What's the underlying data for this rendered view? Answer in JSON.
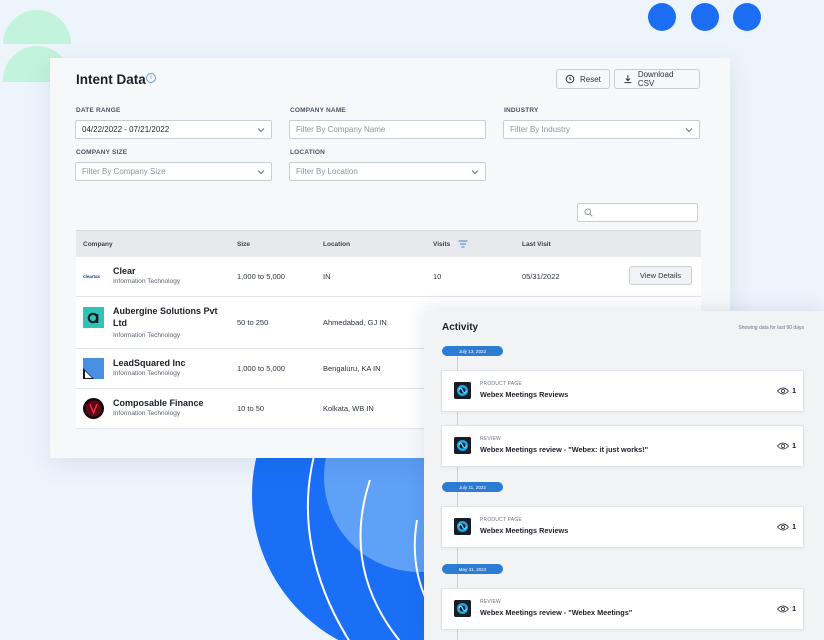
{
  "colors": {
    "accent": "#1c6ef5",
    "pill": "#2d7cd4",
    "mint": "#c3f3dc"
  },
  "header": {
    "title": "Intent Data",
    "reset_label": "Reset",
    "download_label": "Download CSV"
  },
  "filters": {
    "date_range": {
      "label": "DATE RANGE",
      "value": "04/22/2022 - 07/21/2022"
    },
    "company_name": {
      "label": "COMPANY NAME",
      "placeholder": "Filter By Company Name"
    },
    "industry": {
      "label": "INDUSTRY",
      "placeholder": "Filter By Industry"
    },
    "company_size": {
      "label": "COMPANY SIZE",
      "placeholder": "Filter By Company Size"
    },
    "location": {
      "label": "LOCATION",
      "placeholder": "Filter By Location"
    }
  },
  "table": {
    "columns": [
      "Company",
      "Size",
      "Location",
      "Visits",
      "Last Visit"
    ],
    "rows": [
      {
        "name": "Clear",
        "industry": "Information Technology",
        "size": "1,000 to 5,000",
        "location": "IN",
        "visits": "10",
        "last_visit": "05/31/2022",
        "action": "View Details",
        "logo_text": "cleartax"
      },
      {
        "name": "Aubergine Solutions Pvt Ltd",
        "industry": "Information Technology",
        "size": "50 to 250",
        "location": "Ahmedabad, GJ IN"
      },
      {
        "name": "LeadSquared Inc",
        "industry": "Information Technology",
        "size": "1,000 to 5,000",
        "location": "Bengaluru, KA IN"
      },
      {
        "name": "Composable Finance",
        "industry": "Information Technology",
        "size": "10 to 50",
        "location": "Kolkata, WB IN"
      }
    ]
  },
  "activity": {
    "title": "Activity",
    "note": "Showing data for last 90 days",
    "dates": [
      "July 13, 2022",
      "July 11, 2022",
      "May 31, 2022"
    ],
    "items": [
      {
        "type": "PRODUCT PAGE",
        "title": "Webex Meetings Reviews",
        "count": "1"
      },
      {
        "type": "REVIEW",
        "title": "Webex Meetings review - \"Webex: it just works!\"",
        "count": "1"
      },
      {
        "type": "PRODUCT PAGE",
        "title": "Webex Meetings Reviews",
        "count": "1"
      },
      {
        "type": "REVIEW",
        "title": "Webex Meetings review - \"Webex Meetings\"",
        "count": "1"
      }
    ]
  }
}
